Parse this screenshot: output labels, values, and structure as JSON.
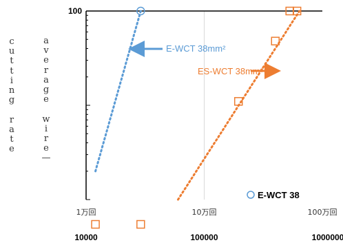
{
  "chart_data": {
    "type": "scatter",
    "x_scale": "log",
    "xlim": [
      10000,
      1000000
    ],
    "ylim_top": 100,
    "ylabel_left": "cutting rate",
    "ylabel_right": "average wire—",
    "x_ticks": [
      {
        "value": 10000,
        "label": "10000",
        "jp_label": "1万回"
      },
      {
        "value": 100000,
        "label": "100000",
        "jp_label": "10万回"
      },
      {
        "value": 1000000,
        "label": "1000000",
        "jp_label": "100万回"
      }
    ],
    "y_ticks": [
      {
        "value": 100,
        "label": "100"
      }
    ],
    "grid": "vertical major lines",
    "series": [
      {
        "name": "E-WCT 38mm²",
        "color": "#5b9bd5",
        "marker": "circle",
        "points": [
          {
            "x": 29000,
            "y": 100
          }
        ],
        "trend": [
          {
            "x": 12000,
            "y": 2
          },
          {
            "x": 29000,
            "y": 100
          }
        ]
      },
      {
        "name": "ES-WCT 38mm²",
        "color": "#ed7d31",
        "marker": "square",
        "points": [
          {
            "x": 530000,
            "y": 100
          },
          {
            "x": 610000,
            "y": 100
          },
          {
            "x": 400000,
            "y": 48
          },
          {
            "x": 195000,
            "y": 11
          },
          {
            "x": 12000,
            "y": 0.02
          },
          {
            "x": 29000,
            "y": 0.02
          }
        ],
        "trend": [
          {
            "x": 60000,
            "y": 1
          },
          {
            "x": 640000,
            "y": 100
          }
        ]
      }
    ],
    "annotations": [
      {
        "text": "E-WCT 38mm²",
        "color": "#5b9bd5",
        "points_to": "E-WCT 38mm²",
        "position": "upper-middle"
      },
      {
        "text": "ES-WCT 38mm²",
        "color": "#ed7d31",
        "points_to": "ES-WCT 38mm²",
        "position": "middle-right"
      }
    ],
    "legend": [
      {
        "label": "E-WCT 38",
        "marker": "circle",
        "color": "#5b9bd5",
        "placement": "bottom-right"
      }
    ]
  }
}
